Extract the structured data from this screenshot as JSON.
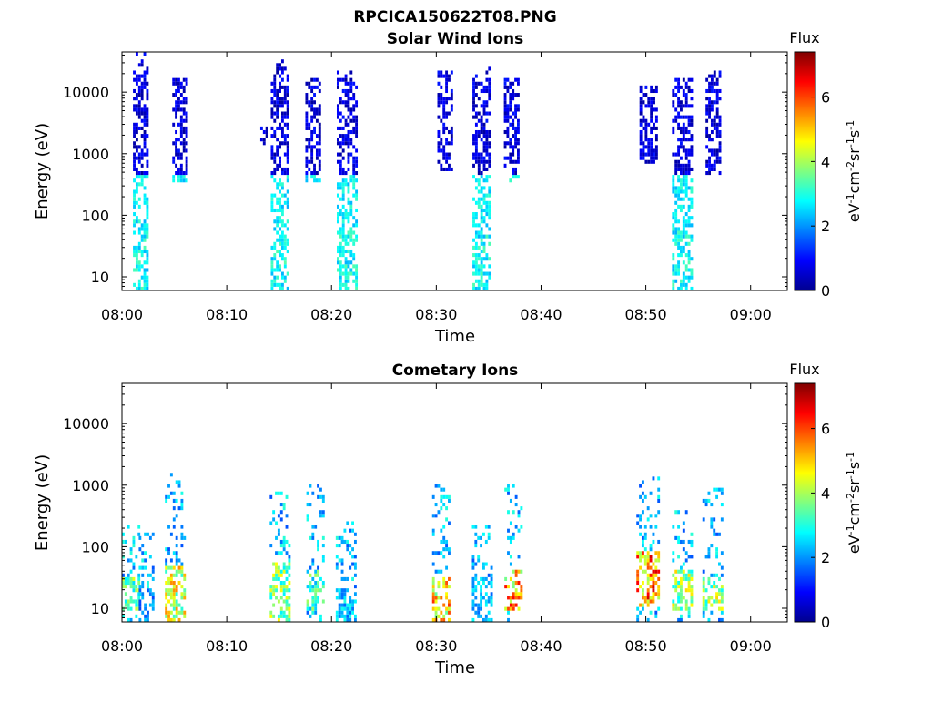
{
  "figure_title": "RPCICA150622T08.PNG",
  "chart_data": [
    {
      "type": "heatmap",
      "title": "Solar Wind Ions",
      "xlabel": "Time",
      "ylabel": "Energy (eV)",
      "x_ticks": [
        "08:00",
        "08:10",
        "08:20",
        "08:30",
        "08:40",
        "08:50",
        "09:00"
      ],
      "x_range_minutes": [
        0,
        63.5
      ],
      "y_ticks": [
        "10",
        "100",
        "1000",
        "10000"
      ],
      "y_range": [
        6,
        45000
      ],
      "y_scale": "log",
      "colorbar": {
        "title": "Flux",
        "label": "eV-1cm-2sr-1s-1",
        "ticks": [
          "0",
          "2",
          "4",
          "6"
        ],
        "range": [
          0,
          7.4
        ],
        "colormap": "jet"
      },
      "bursts": [
        {
          "center": 1.8,
          "width": 1.5,
          "e_low": 6,
          "e_high": 40000,
          "core_low": 6,
          "core_high": 20000,
          "level": 0.6
        },
        {
          "center": 5.5,
          "width": 1.4,
          "e_low": 300,
          "e_high": 15000,
          "core_low": 300,
          "core_high": 15000,
          "level": 0.3
        },
        {
          "center": 13.5,
          "width": 0.6,
          "e_low": 1200,
          "e_high": 2500,
          "core_low": 1200,
          "core_high": 2500,
          "level": 0.4
        },
        {
          "center": 15.0,
          "width": 1.6,
          "e_low": 6,
          "e_high": 30000,
          "core_low": 6,
          "core_high": 15000,
          "level": 0.6
        },
        {
          "center": 18.2,
          "width": 1.4,
          "e_low": 300,
          "e_high": 15000,
          "core_low": 300,
          "core_high": 15000,
          "level": 0.3
        },
        {
          "center": 21.4,
          "width": 1.8,
          "e_low": 6,
          "e_high": 20000,
          "core_low": 6,
          "core_high": 15000,
          "level": 0.65
        },
        {
          "center": 30.8,
          "width": 1.4,
          "e_low": 500,
          "e_high": 20000,
          "core_low": 500,
          "core_high": 20000,
          "level": 0.3
        },
        {
          "center": 34.3,
          "width": 1.7,
          "e_low": 6,
          "e_high": 25000,
          "core_low": 6,
          "core_high": 15000,
          "level": 0.6
        },
        {
          "center": 37.2,
          "width": 1.5,
          "e_low": 300,
          "e_high": 15000,
          "core_low": 300,
          "core_high": 15000,
          "level": 0.3
        },
        {
          "center": 50.2,
          "width": 1.6,
          "e_low": 600,
          "e_high": 12000,
          "core_low": 600,
          "core_high": 12000,
          "level": 0.3
        },
        {
          "center": 53.4,
          "width": 1.8,
          "e_low": 6,
          "e_high": 15000,
          "core_low": 6,
          "core_high": 15000,
          "level": 0.65
        },
        {
          "center": 56.4,
          "width": 1.4,
          "e_low": 400,
          "e_high": 20000,
          "core_low": 400,
          "core_high": 20000,
          "level": 0.3
        }
      ]
    },
    {
      "type": "heatmap",
      "title": "Cometary Ions",
      "xlabel": "Time",
      "ylabel": "Energy (eV)",
      "x_ticks": [
        "08:00",
        "08:10",
        "08:20",
        "08:30",
        "08:40",
        "08:50",
        "09:00"
      ],
      "x_range_minutes": [
        0,
        63.5
      ],
      "y_ticks": [
        "10",
        "100",
        "1000",
        "10000"
      ],
      "y_range": [
        6,
        45000
      ],
      "y_scale": "log",
      "colorbar": {
        "title": "Flux",
        "label": "eV-1cm-2sr-1s-1",
        "ticks": [
          "0",
          "2",
          "4",
          "6"
        ],
        "range": [
          0,
          7.4
        ],
        "colormap": "jet"
      },
      "bursts": [
        {
          "center": 0.8,
          "width": 1.6,
          "e_low": 6,
          "e_high": 200,
          "core_low": 8,
          "core_high": 30,
          "level": 4.5
        },
        {
          "center": 2.3,
          "width": 1.4,
          "e_low": 6,
          "e_high": 150,
          "core_low": 6,
          "core_high": 20,
          "level": 2.5
        },
        {
          "center": 5.0,
          "width": 1.8,
          "e_low": 6,
          "e_high": 1400,
          "core_low": 6,
          "core_high": 45,
          "level": 5.5
        },
        {
          "center": 15.0,
          "width": 1.8,
          "e_low": 6,
          "e_high": 700,
          "core_low": 6,
          "core_high": 50,
          "level": 4.8
        },
        {
          "center": 18.4,
          "width": 1.6,
          "e_low": 6,
          "e_high": 1000,
          "core_low": 8,
          "core_high": 40,
          "level": 4.0
        },
        {
          "center": 21.3,
          "width": 1.8,
          "e_low": 6,
          "e_high": 250,
          "core_low": 6,
          "core_high": 20,
          "level": 3.0
        },
        {
          "center": 30.4,
          "width": 1.6,
          "e_low": 6,
          "e_high": 1000,
          "core_low": 6,
          "core_high": 30,
          "level": 6.2
        },
        {
          "center": 34.3,
          "width": 1.8,
          "e_low": 6,
          "e_high": 200,
          "core_low": 6,
          "core_high": 30,
          "level": 3.0
        },
        {
          "center": 37.3,
          "width": 1.6,
          "e_low": 6,
          "e_high": 1000,
          "core_low": 8,
          "core_high": 40,
          "level": 6.5
        },
        {
          "center": 50.2,
          "width": 2.2,
          "e_low": 6,
          "e_high": 1200,
          "core_low": 10,
          "core_high": 80,
          "level": 6.8
        },
        {
          "center": 53.4,
          "width": 1.8,
          "e_low": 6,
          "e_high": 350,
          "core_low": 8,
          "core_high": 40,
          "level": 5.0
        },
        {
          "center": 56.3,
          "width": 1.8,
          "e_low": 6,
          "e_high": 1000,
          "core_low": 8,
          "core_high": 30,
          "level": 5.0
        }
      ]
    }
  ]
}
